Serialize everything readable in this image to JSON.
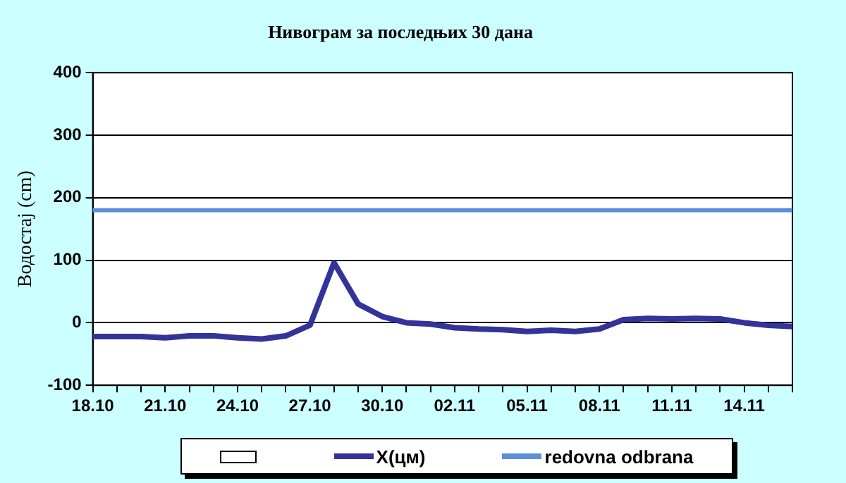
{
  "chart_data": {
    "type": "line",
    "title": "Нивограм за последњих 30 дана",
    "ylabel": "Водостај (cm)",
    "categories": [
      "18.10",
      null,
      null,
      "21.10",
      null,
      null,
      "24.10",
      null,
      null,
      "27.10",
      null,
      null,
      "30.10",
      null,
      null,
      "02.11",
      null,
      null,
      "05.11",
      null,
      null,
      "08.11",
      null,
      null,
      "11.11",
      null,
      null,
      "14.11",
      null,
      null
    ],
    "series": [
      {
        "name": "X(цм)",
        "color": "#333399",
        "values": [
          -22,
          -22,
          -22,
          -24,
          -21,
          -21,
          -24,
          -26,
          -21,
          -4,
          96,
          30,
          10,
          0,
          -2,
          -8,
          -10,
          -11,
          -14,
          -12,
          -14,
          -10,
          5,
          7,
          6,
          7,
          6,
          0,
          -4,
          -6
        ]
      }
    ],
    "ref_lines": [
      {
        "axis": "y",
        "value": 180,
        "label": "redovna odbrana",
        "color": "#5b8fd9"
      }
    ],
    "ylim": [
      -100,
      400
    ],
    "yticks": [
      -100,
      0,
      100,
      200,
      300,
      400
    ],
    "grid": "y",
    "legend": "bottom",
    "marker": "none",
    "line_style": "solid"
  }
}
